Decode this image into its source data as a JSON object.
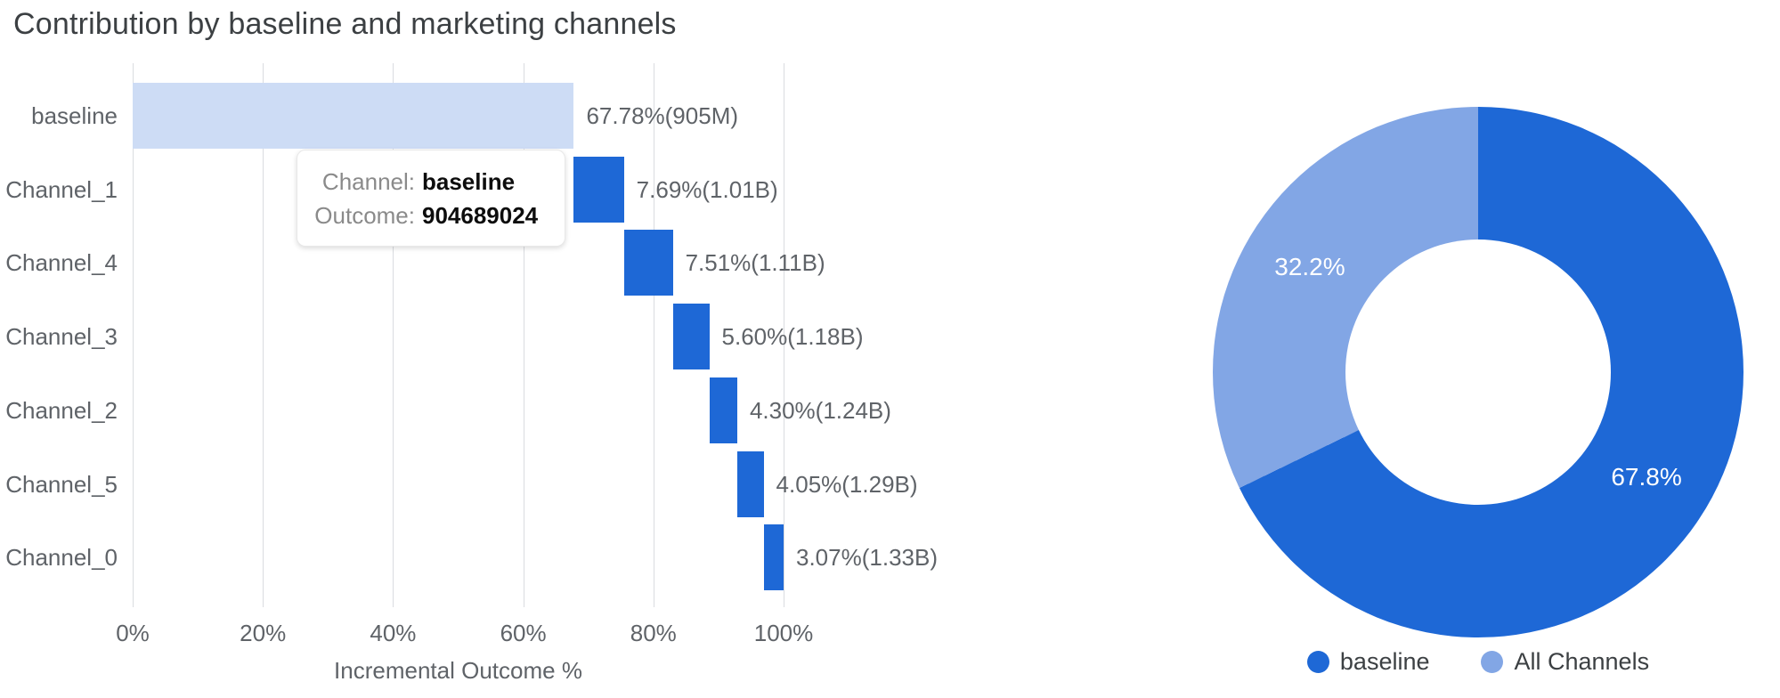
{
  "title": "Contribution by baseline and marketing channels",
  "colors": {
    "bar_baseline": "#cddcf5",
    "bar_channel": "#1e68d6",
    "donut_dark": "#1e68d6",
    "donut_light": "#82a6e5",
    "grid": "#dadce0",
    "axis_text": "#5f6368",
    "title_text": "#3c4043",
    "slice_label_text": "#ffffff"
  },
  "tooltip": {
    "rows": [
      {
        "label": "Channel:",
        "value": "baseline"
      },
      {
        "label": "Outcome:",
        "value": "904689024"
      }
    ]
  },
  "legend": {
    "items": [
      {
        "label": "baseline",
        "swatch": "dark"
      },
      {
        "label": "All Channels",
        "swatch": "light"
      }
    ]
  },
  "chart_data": [
    {
      "type": "bar",
      "subtype": "horizontal-waterfall",
      "title": "Contribution by baseline and marketing channels",
      "xlabel": "Incremental Outcome %",
      "ylabel": "",
      "xlim": [
        0,
        100
      ],
      "x_ticks": [
        "0%",
        "20%",
        "40%",
        "60%",
        "80%",
        "100%"
      ],
      "x_tick_values": [
        0,
        20,
        40,
        60,
        80,
        100
      ],
      "grid": true,
      "categories": [
        "baseline",
        "Channel_1",
        "Channel_4",
        "Channel_3",
        "Channel_2",
        "Channel_5",
        "Channel_0"
      ],
      "values": [
        67.78,
        7.69,
        7.51,
        5.6,
        4.3,
        4.05,
        3.07
      ],
      "cumulative_start": [
        0,
        67.78,
        75.47,
        82.98,
        88.58,
        92.88,
        96.93
      ],
      "bar_labels": [
        "67.78%(905M)",
        "7.69%(1.01B)",
        "7.51%(1.11B)",
        "5.60%(1.18B)",
        "4.30%(1.24B)",
        "4.05%(1.29B)",
        "3.07%(1.33B)"
      ]
    },
    {
      "type": "pie",
      "subtype": "donut",
      "hole": 0.5,
      "categories": [
        "baseline",
        "All Channels"
      ],
      "values": [
        67.8,
        32.2
      ],
      "slice_labels": [
        "67.8%",
        "32.2%"
      ],
      "legend_position": "bottom",
      "start_angle_deg": 0,
      "direction": "clockwise"
    }
  ]
}
